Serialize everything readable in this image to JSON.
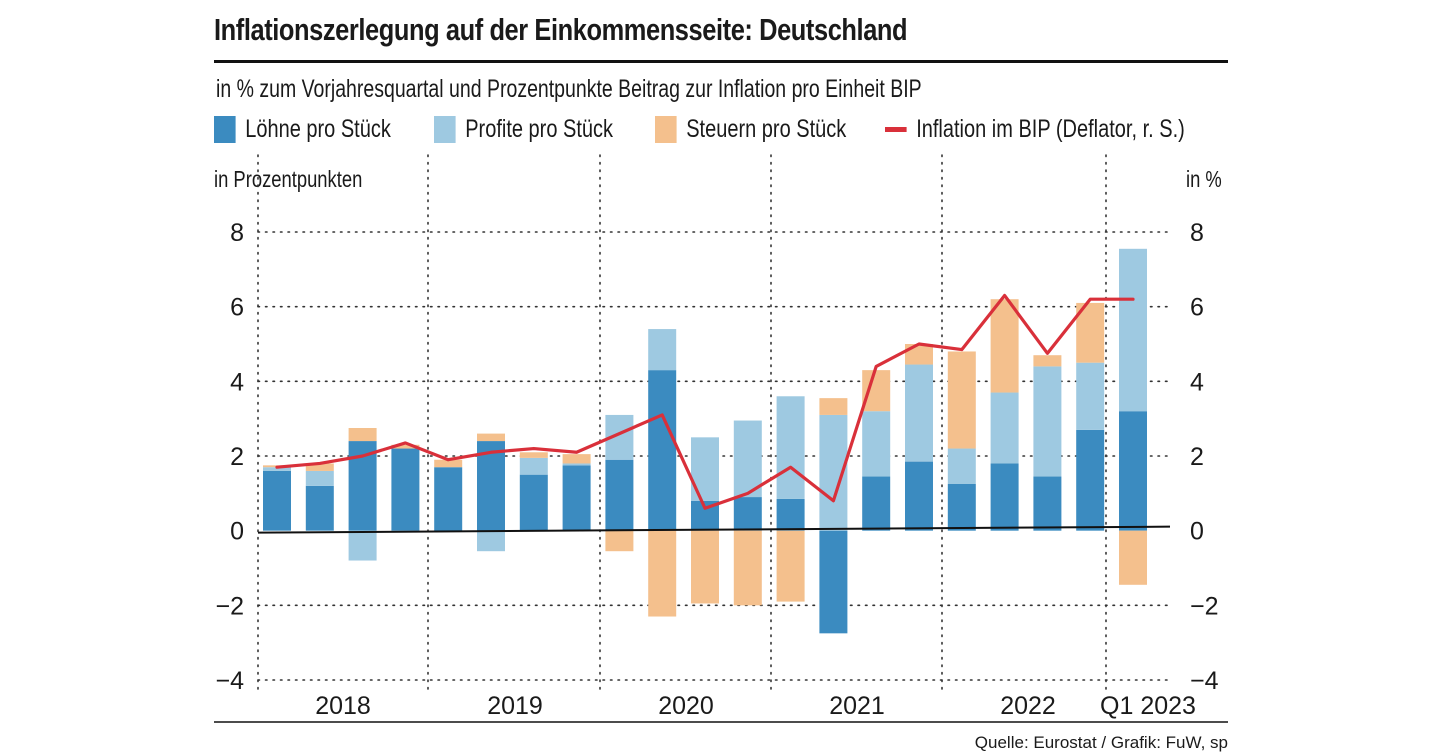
{
  "title": "Inflationszerlegung auf der Einkommensseite: Deutschland",
  "subtitle": "in % zum Vorjahresquartal und Prozentpunkte Beitrag zur Inflation pro Einheit BIP",
  "legend": {
    "wages": "Löhne pro Stück",
    "profits": "Profite pro Stück",
    "taxes": "Steuern pro Stück",
    "inflation": "Inflation im BIP (Deflator, r. S.)"
  },
  "axis_left_title": "in Prozentpunkten",
  "axis_right_title": "in %",
  "source": "Quelle: Eurostat / Grafik: FuW, sp",
  "colors": {
    "wages": "#3b8bc0",
    "profits": "#9ec9e1",
    "taxes": "#f4c08d",
    "inflation": "#d9303a"
  },
  "chart_data": {
    "type": "bar",
    "stacked": true,
    "title": "Inflationszerlegung auf der Einkommensseite: Deutschland",
    "ylabel_left": "in Prozentpunkten",
    "ylabel_right": "in %",
    "ylim": [
      -4,
      8
    ],
    "yticks": [
      "8",
      "6",
      "4",
      "2",
      "0",
      "−2",
      "−4"
    ],
    "ytick_values": [
      8,
      6,
      4,
      2,
      0,
      -2,
      -4
    ],
    "year_labels": [
      "2018",
      "2019",
      "2020",
      "2021",
      "2022",
      "Q1 2023"
    ],
    "quarters": [
      "2018Q1",
      "2018Q2",
      "2018Q3",
      "2018Q4",
      "2019Q1",
      "2019Q2",
      "2019Q3",
      "2019Q4",
      "2020Q1",
      "2020Q2",
      "2020Q3",
      "2020Q4",
      "2021Q1",
      "2021Q2",
      "2021Q3",
      "2021Q4",
      "2022Q1",
      "2022Q2",
      "2022Q3",
      "2022Q4",
      "2023Q1"
    ],
    "series": [
      {
        "name": "Löhne pro Stück",
        "key": "wages",
        "values": [
          1.6,
          1.2,
          2.4,
          2.2,
          1.7,
          2.4,
          1.5,
          1.75,
          1.9,
          4.3,
          0.8,
          0.9,
          0.85,
          -2.75,
          1.45,
          1.85,
          1.25,
          1.8,
          1.45,
          2.7,
          3.2
        ]
      },
      {
        "name": "Profite pro Stück",
        "key": "profits",
        "values": [
          0.1,
          0.4,
          -0.8,
          0.0,
          0.0,
          -0.55,
          0.45,
          0.05,
          1.2,
          1.1,
          1.7,
          2.05,
          2.75,
          3.1,
          1.75,
          2.6,
          0.95,
          1.9,
          2.95,
          1.8,
          4.35
        ]
      },
      {
        "name": "Steuern pro Stück",
        "key": "taxes",
        "values": [
          0.05,
          0.2,
          0.35,
          0.1,
          0.2,
          0.2,
          0.15,
          0.25,
          -0.55,
          -2.3,
          -1.95,
          -2.0,
          -1.9,
          0.45,
          1.1,
          0.55,
          2.6,
          2.5,
          0.3,
          1.6,
          -1.45
        ]
      },
      {
        "name": "Inflation im BIP (Deflator, r. S.)",
        "key": "inflation",
        "type": "line",
        "values": [
          1.7,
          1.8,
          2.0,
          2.35,
          1.9,
          2.1,
          2.2,
          2.1,
          2.6,
          3.1,
          0.6,
          1.0,
          1.7,
          0.8,
          4.4,
          5.0,
          4.85,
          6.3,
          4.75,
          6.2,
          6.2
        ]
      }
    ]
  }
}
